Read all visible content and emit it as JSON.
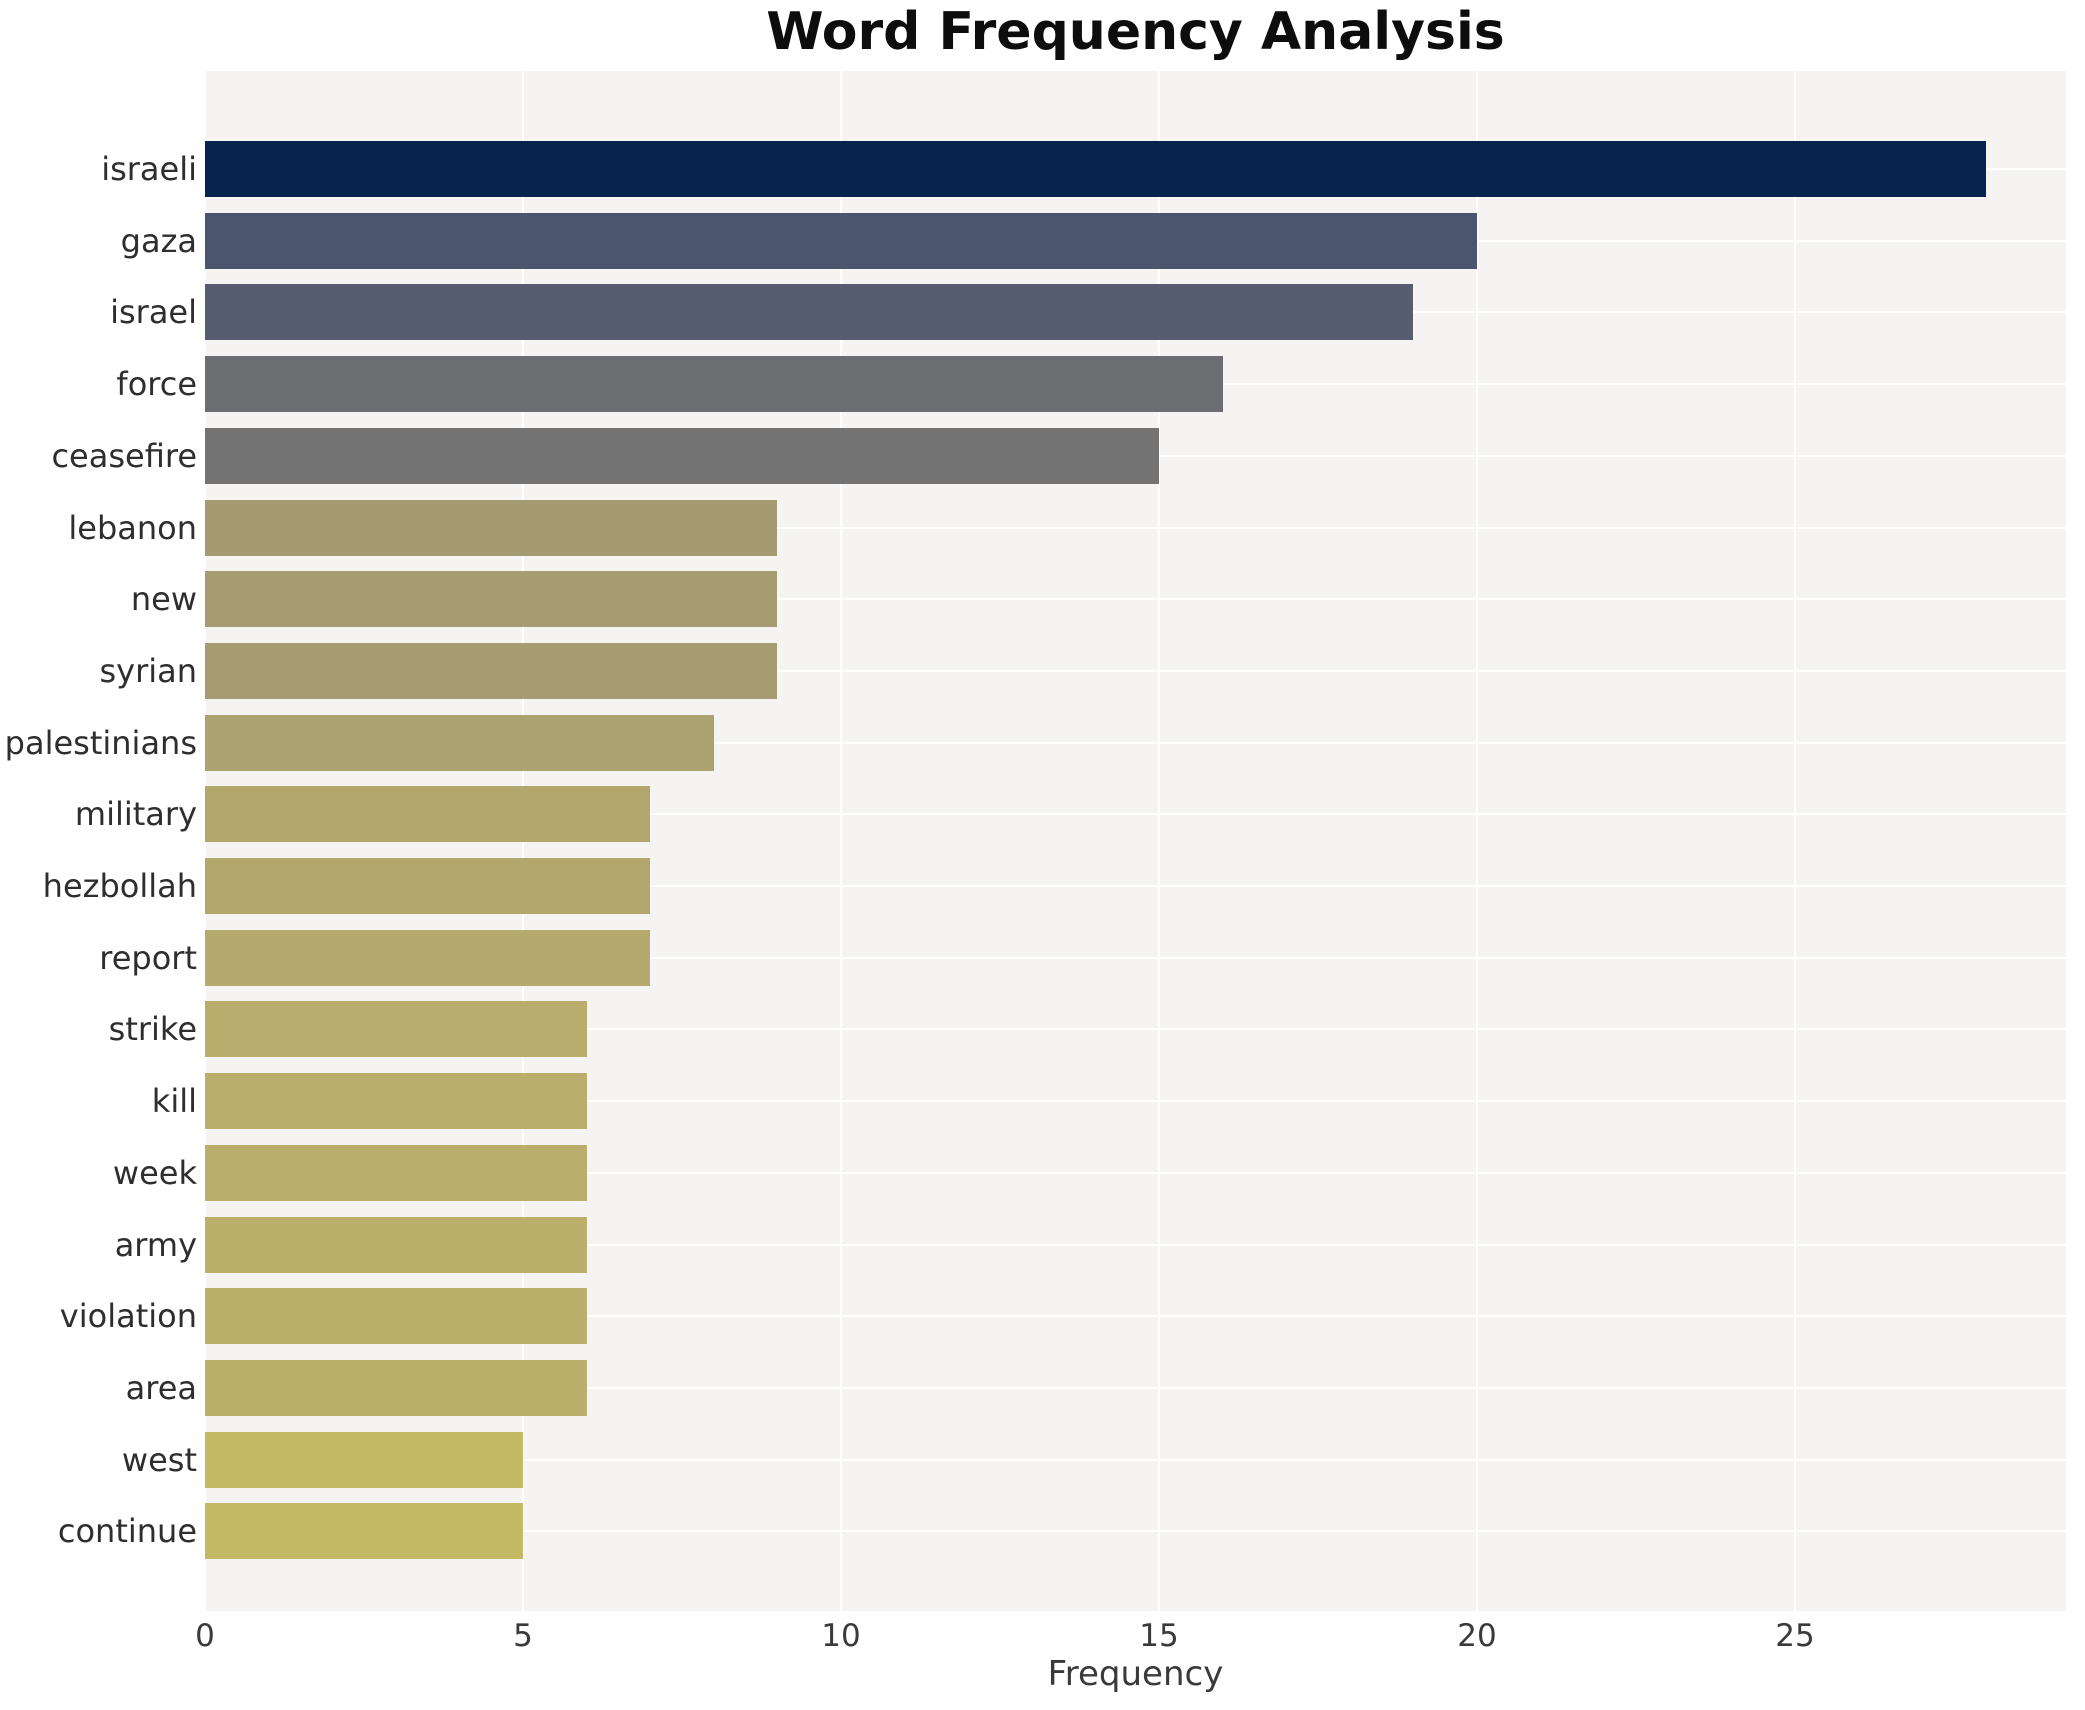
{
  "chart_data": {
    "type": "bar",
    "orientation": "horizontal",
    "title": "Word Frequency Analysis",
    "xlabel": "Frequency",
    "ylabel": "",
    "categories": [
      "israeli",
      "gaza",
      "israel",
      "force",
      "ceasefire",
      "lebanon",
      "new",
      "syrian",
      "palestinians",
      "military",
      "hezbollah",
      "report",
      "strike",
      "kill",
      "week",
      "army",
      "violation",
      "area",
      "west",
      "continue"
    ],
    "values": [
      28,
      20,
      19,
      16,
      15,
      9,
      9,
      9,
      8,
      7,
      7,
      7,
      6,
      6,
      6,
      6,
      6,
      6,
      5,
      5
    ],
    "bar_colors": [
      "#08234d",
      "#4c556e",
      "#565d70",
      "#6c6e71",
      "#727372",
      "#a49b72",
      "#a59c72",
      "#a59c71",
      "#aca26f",
      "#b2a86e",
      "#b2a86e",
      "#b4aa6e",
      "#b8ad6c",
      "#b9ae6c",
      "#b9ae6c",
      "#baaf6b",
      "#bbb06b",
      "#bbb06b",
      "#c4b964",
      "#c4b964"
    ],
    "x_ticks": [
      0,
      5,
      10,
      15,
      20,
      25
    ],
    "xlim": [
      0,
      29.26
    ],
    "grid": true,
    "legend": false,
    "plot_background": "#f5f4f2",
    "grid_color": "#ffffff"
  }
}
